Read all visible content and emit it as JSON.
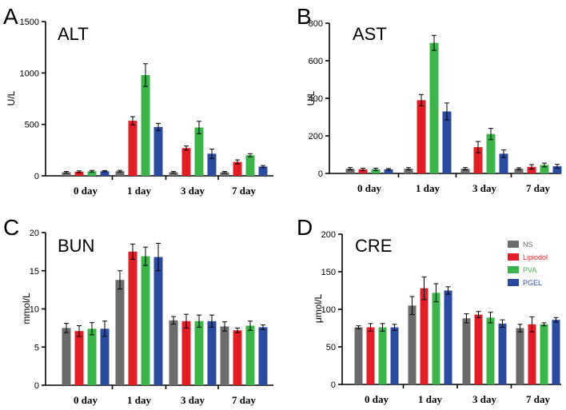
{
  "colors": {
    "NS": "#6b6b6b",
    "Lipiodol": "#e21e26",
    "PVA": "#3bb54a",
    "PGEL": "#2a4ba0"
  },
  "legend": [
    {
      "label": "NS",
      "color": "#6b6b6b",
      "text_color": "#6b6b6b"
    },
    {
      "label": "Lipiodol",
      "color": "#e21e26",
      "text_color": "#e21e26"
    },
    {
      "label": "PVA",
      "color": "#3bb54a",
      "text_color": "#3bb54a"
    },
    {
      "label": "PGEL",
      "color": "#2a4ba0",
      "text_color": "#2a4ba0"
    }
  ],
  "chart_data": [
    {
      "panel": "A",
      "type": "bar",
      "title": "ALT",
      "ylabel": "U/L",
      "xlabel": "",
      "ylim": [
        0,
        1500
      ],
      "yticks": [
        0,
        500,
        1000,
        1500
      ],
      "categories": [
        "0 day",
        "1 day",
        "3 day",
        "7 day"
      ],
      "series": [
        {
          "name": "NS",
          "values": [
            35,
            45,
            35,
            35
          ],
          "errors": [
            8,
            8,
            8,
            8
          ]
        },
        {
          "name": "Lipiodol",
          "values": [
            40,
            535,
            270,
            135
          ],
          "errors": [
            8,
            40,
            20,
            20
          ]
        },
        {
          "name": "PVA",
          "values": [
            45,
            980,
            470,
            200
          ],
          "errors": [
            8,
            110,
            60,
            15
          ]
        },
        {
          "name": "PGEL",
          "values": [
            45,
            475,
            215,
            90
          ],
          "errors": [
            6,
            35,
            45,
            10
          ]
        }
      ]
    },
    {
      "panel": "B",
      "type": "bar",
      "title": "AST",
      "ylabel": "U/L",
      "xlabel": "",
      "ylim": [
        0,
        800
      ],
      "yticks": [
        0,
        200,
        400,
        600,
        800
      ],
      "categories": [
        "0 day",
        "1 day",
        "3 day",
        "7 day"
      ],
      "series": [
        {
          "name": "NS",
          "values": [
            25,
            25,
            25,
            25
          ],
          "errors": [
            6,
            6,
            6,
            5
          ]
        },
        {
          "name": "Lipiodol",
          "values": [
            22,
            390,
            140,
            35
          ],
          "errors": [
            6,
            30,
            30,
            12
          ]
        },
        {
          "name": "PVA",
          "values": [
            22,
            695,
            210,
            45
          ],
          "errors": [
            6,
            40,
            30,
            10
          ]
        },
        {
          "name": "PGEL",
          "values": [
            22,
            330,
            105,
            38
          ],
          "errors": [
            4,
            45,
            20,
            10
          ]
        }
      ]
    },
    {
      "panel": "C",
      "type": "bar",
      "title": "BUN",
      "ylabel": "mmol/L",
      "xlabel": "",
      "ylim": [
        0,
        20
      ],
      "yticks": [
        0,
        5,
        10,
        15,
        20
      ],
      "categories": [
        "0 day",
        "1 day",
        "3 day",
        "7 day"
      ],
      "series": [
        {
          "name": "NS",
          "values": [
            7.5,
            13.8,
            8.5,
            7.7
          ],
          "errors": [
            0.6,
            1.2,
            0.5,
            0.6
          ]
        },
        {
          "name": "Lipiodol",
          "values": [
            7.1,
            17.5,
            8.4,
            7.2
          ],
          "errors": [
            0.7,
            1.0,
            0.9,
            0.3
          ]
        },
        {
          "name": "PVA",
          "values": [
            7.4,
            16.9,
            8.4,
            7.8
          ],
          "errors": [
            0.8,
            1.2,
            0.8,
            0.6
          ]
        },
        {
          "name": "PGEL",
          "values": [
            7.4,
            16.8,
            8.4,
            7.6
          ],
          "errors": [
            1.0,
            1.8,
            0.8,
            0.3
          ]
        }
      ]
    },
    {
      "panel": "D",
      "type": "bar",
      "title": "CRE",
      "ylabel": "μmol/L",
      "xlabel": "",
      "ylim": [
        0,
        200
      ],
      "yticks": [
        0,
        50,
        100,
        150,
        200
      ],
      "categories": [
        "0 day",
        "1 day",
        "3 day",
        "7 day"
      ],
      "series": [
        {
          "name": "NS",
          "values": [
            76,
            105,
            88,
            75
          ],
          "errors": [
            2,
            12,
            6,
            5
          ]
        },
        {
          "name": "Lipiodol",
          "values": [
            76,
            128,
            93,
            80
          ],
          "errors": [
            5,
            15,
            4,
            10
          ]
        },
        {
          "name": "PVA",
          "values": [
            76,
            122,
            89,
            80
          ],
          "errors": [
            5,
            12,
            7,
            2
          ]
        },
        {
          "name": "PGEL",
          "values": [
            76,
            125,
            81,
            86
          ],
          "errors": [
            4,
            5,
            5,
            3
          ]
        }
      ]
    }
  ]
}
